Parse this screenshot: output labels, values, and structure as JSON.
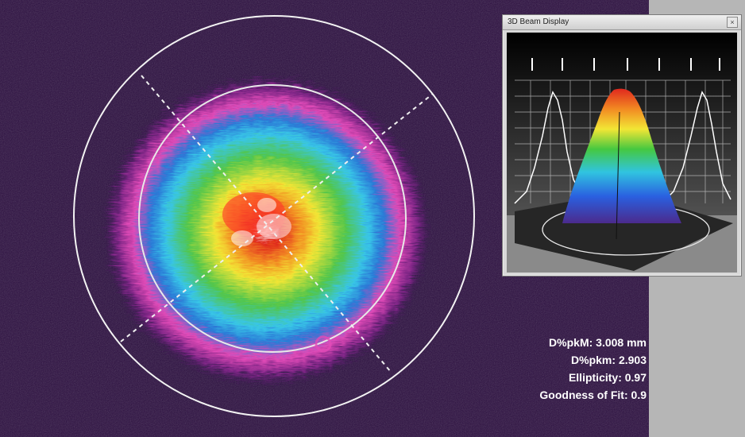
{
  "window": {
    "title": "3D Beam Display",
    "close_icon": "close-icon"
  },
  "stats": [
    {
      "label": "D%pkM",
      "value": "3.008 mm"
    },
    {
      "label": "D%pkm",
      "value": "2.903"
    },
    {
      "label": "Ellipticity",
      "value": "0.97"
    },
    {
      "label": "Goodness of Fit",
      "value": "0.9"
    }
  ],
  "colors": {
    "background": "#2a0d36",
    "panel": "#b6b6b6",
    "outer_ring": "#9b2a8f",
    "mid_ring": "#e24bb8",
    "blue": "#2a78d6",
    "cyan": "#38c6e8",
    "green": "#52c64a",
    "yellow": "#f2e635",
    "orange": "#f28a22",
    "red": "#e0281e"
  }
}
